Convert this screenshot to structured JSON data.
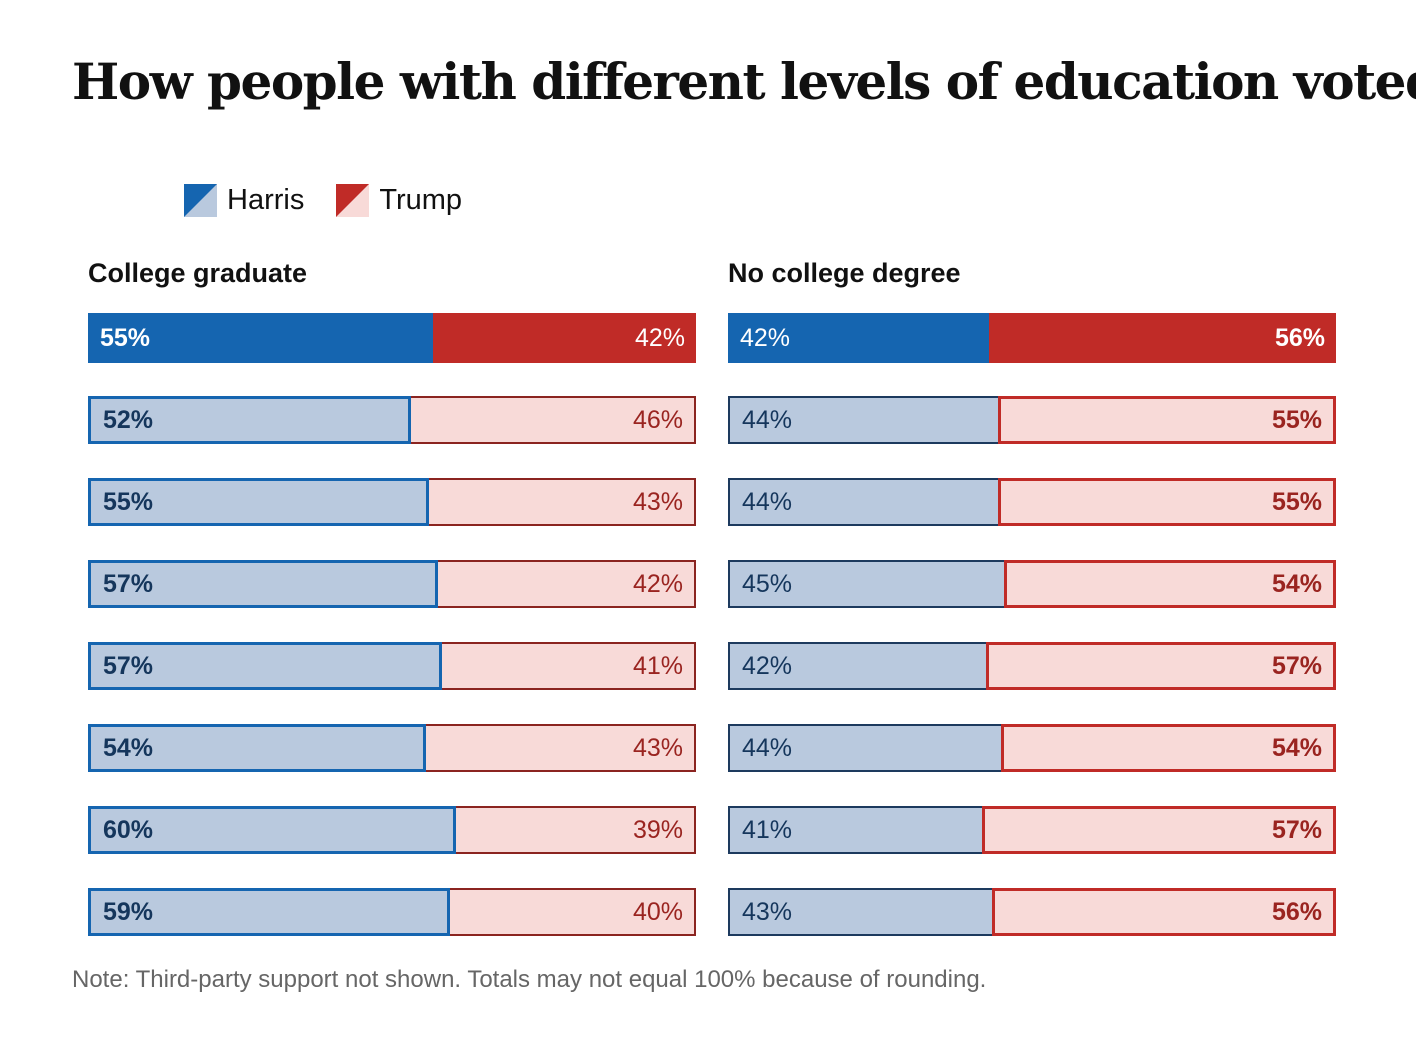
{
  "title": "How people with different levels of education voted",
  "legend": [
    {
      "label": "Harris",
      "color": "#1565b0",
      "light": "#b9c9de"
    },
    {
      "label": "Trump",
      "color": "#c02b27",
      "light": "#f8dad8"
    }
  ],
  "note": "Note: Third-party support not shown. Totals may not equal 100% because of rounding.",
  "chart_data": [
    {
      "type": "bar",
      "title": "College graduate",
      "stacked": true,
      "series": [
        {
          "name": "Harris",
          "values": [
            55,
            52,
            55,
            57,
            57,
            54,
            60,
            59
          ]
        },
        {
          "name": "Trump",
          "values": [
            42,
            46,
            43,
            42,
            41,
            43,
            39,
            40
          ]
        }
      ],
      "labels": {
        "harris": [
          "55%",
          "52%",
          "55%",
          "57%",
          "57%",
          "54%",
          "60%",
          "59%"
        ],
        "trump": [
          "42%",
          "46%",
          "43%",
          "42%",
          "41%",
          "43%",
          "39%",
          "40%"
        ]
      }
    },
    {
      "type": "bar",
      "title": "No college degree",
      "stacked": true,
      "series": [
        {
          "name": "Harris",
          "values": [
            42,
            44,
            44,
            45,
            42,
            44,
            41,
            43
          ]
        },
        {
          "name": "Trump",
          "values": [
            56,
            55,
            55,
            54,
            57,
            54,
            57,
            56
          ]
        }
      ],
      "labels": {
        "harris": [
          "42%",
          "44%",
          "44%",
          "45%",
          "42%",
          "44%",
          "41%",
          "43%"
        ],
        "trump": [
          "56%",
          "55%",
          "55%",
          "54%",
          "57%",
          "54%",
          "57%",
          "56%"
        ]
      }
    }
  ]
}
